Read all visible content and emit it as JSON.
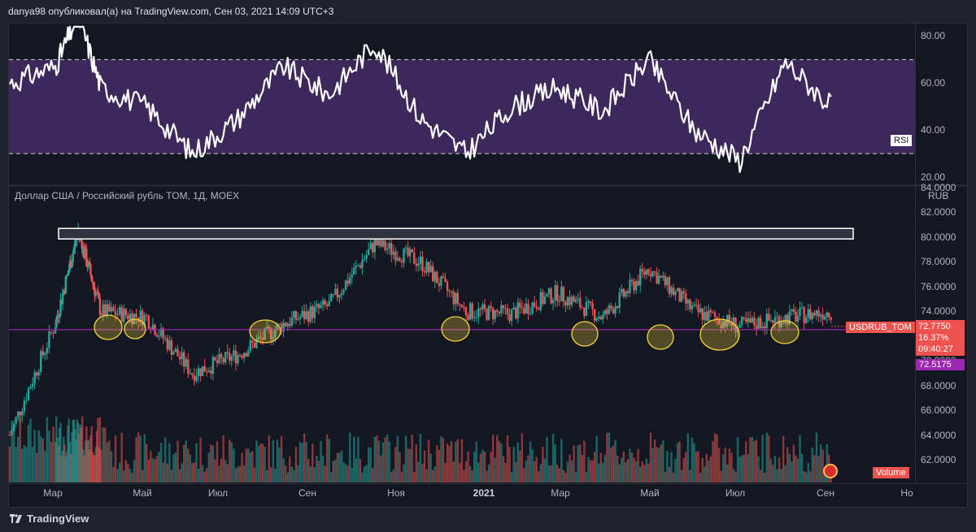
{
  "header": {
    "text": "danya98 опубликовал(а) на TradingView.com, Сен 03, 2021 14:09 UTC+3"
  },
  "footer": {
    "brand": "TradingView"
  },
  "rsi_pane": {
    "badge": "RSI",
    "ticks": [
      "80.00",
      "60.00",
      "40.00",
      "20.00"
    ],
    "band_upper": 70,
    "band_lower": 30,
    "band_color": "#4b2f6e",
    "line_color": "#ffffff"
  },
  "price_pane": {
    "title": "Доллар США / Российский рубль TOM, 1Д, MOEX",
    "currency": "RUB",
    "ticks": [
      "84.0000",
      "82.0000",
      "80.0000",
      "78.0000",
      "76.0000",
      "74.0000",
      "72.0000",
      "70.0000",
      "68.0000",
      "66.0000",
      "64.0000",
      "62.0000"
    ],
    "symbol_tag": "USDRUB_TOM",
    "last_price": "72.7750",
    "change_pct": "16.37%",
    "countdown": "09:40:27",
    "support_price": "72.5175",
    "support_level": 72.5175,
    "resistance_zone": [
      79.85,
      80.7
    ],
    "volume_label": "Volume",
    "up_color": "#26a69a",
    "down_color": "#ef5350",
    "support_color": "#9c27b0",
    "highlight_color": "#f7d53a"
  },
  "time_axis": {
    "labels": [
      "Мар",
      "Май",
      "Июл",
      "Сен",
      "Ноя",
      "2021",
      "Мар",
      "Май",
      "Июл",
      "Сен",
      "Но"
    ]
  },
  "chart_data": {
    "type": "line",
    "title": "Доллар США / Российский рубль TOM, 1Д, MOEX",
    "series": [
      {
        "name": "USDRUB_TOM",
        "x": [
          "2020-02",
          "2020-03",
          "2020-03",
          "2020-04",
          "2020-05",
          "2020-06",
          "2020-07",
          "2020-08",
          "2020-09",
          "2020-10",
          "2020-11",
          "2020-12",
          "2021-01",
          "2021-02",
          "2021-03",
          "2021-04",
          "2021-05",
          "2021-06",
          "2021-07",
          "2021-08",
          "2021-09"
        ],
        "values": [
          64.0,
          73.0,
          80.5,
          74.0,
          73.5,
          69.0,
          70.5,
          73.0,
          74.5,
          79.5,
          78.0,
          74.0,
          73.8,
          75.5,
          73.5,
          77.5,
          74.0,
          72.8,
          73.5,
          74.0,
          72.8
        ]
      },
      {
        "name": "RSI",
        "x": [
          "2020-02",
          "2020-03",
          "2020-03",
          "2020-04",
          "2020-05",
          "2020-06",
          "2020-07",
          "2020-08",
          "2020-09",
          "2020-10",
          "2020-11",
          "2020-12",
          "2021-01",
          "2021-02",
          "2021-03",
          "2021-04",
          "2021-05",
          "2021-06",
          "2021-07",
          "2021-08",
          "2021-09"
        ],
        "values": [
          60,
          67,
          89,
          58,
          50,
          30,
          45,
          67,
          55,
          77,
          45,
          30,
          50,
          58,
          48,
          70,
          40,
          27,
          69,
          50,
          38
        ]
      }
    ],
    "price_ylim": [
      61,
      84
    ],
    "rsi_ylim": [
      20,
      85
    ]
  }
}
